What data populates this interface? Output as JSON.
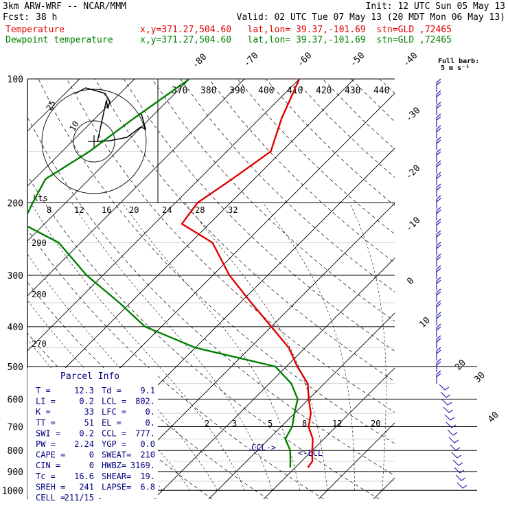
{
  "header": {
    "model": "3km ARW-WRF -- NCAR/MMM",
    "init": "Init: 12 UTC Sun 05 May 13",
    "fcst_label": "Fcst:",
    "fcst_value": "38 h",
    "valid": "Valid: 02 UTC Tue 07 May 13 (20 MDT Mon 06 May 13)",
    "temp_label": "Temperature",
    "temp_info": "x,y=371.27,504.60   lat,lon= 39.37,-101.69  stn=GLD ,72465",
    "dew_label": "Dewpoint temperature",
    "dew_info": "x,y=371.27,504.60   lat,lon= 39.37,-101.69  stn=GLD ,72465",
    "barb_note_1": "Full barb:",
    "barb_note_2": "5 m s⁻¹"
  },
  "colors": {
    "temperature": "#e00000",
    "dewpoint": "#008000",
    "barbs": "#2020b0",
    "text_blue": "#000080"
  },
  "hodograph": {
    "unit": "kts",
    "ring_labels": [
      "25",
      "10"
    ]
  },
  "parcel_info": {
    "title": "Parcel Info",
    "rows": [
      [
        "T  =",
        "12.3",
        "Td =",
        "9.1"
      ],
      [
        "LI =",
        "0.2",
        "LCL =",
        "802."
      ],
      [
        "K  =",
        "33",
        "LFC =",
        "0."
      ],
      [
        "TT =",
        "51",
        "EL  =",
        "0."
      ],
      [
        "SWI =",
        "0.2",
        "CCL =",
        "777."
      ],
      [
        "PW =",
        "2.24",
        "YGP =",
        "0.0"
      ],
      [
        "CAPE =",
        "0",
        "SWEAT=",
        "210"
      ],
      [
        "CIN =",
        "0",
        "HWBZ=",
        "3169."
      ],
      [
        "Tc =",
        "16.6",
        "SHEAR=",
        "19."
      ],
      [
        "SREH =",
        "241",
        "LAPSE=",
        "6.8"
      ],
      [
        "CELL =",
        "211/15",
        "",
        ""
      ]
    ]
  },
  "chart_data": {
    "type": "line",
    "title": "",
    "ylabel": "",
    "pressure_ticks": [
      100,
      200,
      300,
      400,
      500,
      600,
      700,
      800,
      900,
      1000
    ],
    "isotherm_labels": [
      "-80",
      "-70",
      "-60",
      "-50",
      "-40",
      "-30",
      "-20",
      "-10",
      "0",
      "10",
      "20",
      "30",
      "40"
    ],
    "theta_e_labels": [
      "370",
      "380",
      "390",
      "400",
      "410",
      "420",
      "430",
      "440"
    ],
    "speed_labels": [
      "8",
      "12",
      "16",
      "20",
      "24",
      "28",
      "32"
    ],
    "dry_adiabat_labels": [
      "290",
      "280",
      "270"
    ],
    "mixing_ratio_labels": [
      "2",
      "3",
      "5",
      "8",
      "12",
      "20"
    ],
    "annotations": [
      "CCL->",
      "<-LCL"
    ],
    "series": [
      {
        "name": "Temperature",
        "points": [
          [
            100,
            -60
          ],
          [
            125,
            -56
          ],
          [
            150,
            -52
          ],
          [
            175,
            -54
          ],
          [
            200,
            -56
          ],
          [
            225,
            -55
          ],
          [
            250,
            -46
          ],
          [
            300,
            -37
          ],
          [
            350,
            -28
          ],
          [
            400,
            -20
          ],
          [
            450,
            -13
          ],
          [
            500,
            -8
          ],
          [
            550,
            -3
          ],
          [
            600,
            0
          ],
          [
            650,
            3
          ],
          [
            700,
            5
          ],
          [
            750,
            8
          ],
          [
            800,
            10
          ],
          [
            850,
            12
          ],
          [
            880,
            12.3
          ]
        ]
      },
      {
        "name": "Dewpoint temperature",
        "points": [
          [
            100,
            -80
          ],
          [
            125,
            -83
          ],
          [
            150,
            -85
          ],
          [
            175,
            -88
          ],
          [
            200,
            -86
          ],
          [
            225,
            -84
          ],
          [
            250,
            -74
          ],
          [
            300,
            -63
          ],
          [
            350,
            -52
          ],
          [
            400,
            -43
          ],
          [
            450,
            -30
          ],
          [
            500,
            -12
          ],
          [
            550,
            -6
          ],
          [
            600,
            -2
          ],
          [
            650,
            0
          ],
          [
            700,
            2
          ],
          [
            750,
            3
          ],
          [
            800,
            6
          ],
          [
            850,
            8
          ],
          [
            880,
            9.1
          ]
        ]
      }
    ]
  }
}
